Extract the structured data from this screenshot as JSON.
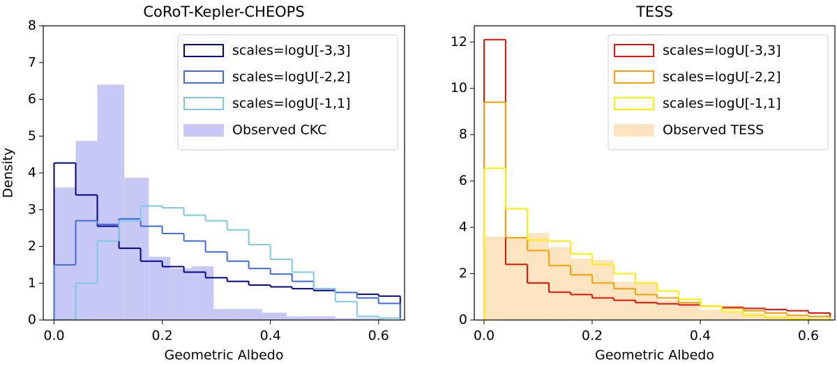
{
  "chart_data": [
    {
      "type": "histogram",
      "title": "CoRoT-Kepler-CHEOPS",
      "xlabel": "Geometric Albedo",
      "ylabel": "Density",
      "xlim": [
        -0.02,
        0.648
      ],
      "ylim": [
        0,
        8
      ],
      "xticks": [
        {
          "value": 0,
          "label": "0.0"
        },
        0.2,
        0.4,
        0.6
      ],
      "yticks": [
        0,
        1,
        2,
        3,
        4,
        5,
        6,
        7,
        8
      ],
      "legend": "upper right",
      "series": [
        {
          "name": "scales=logU[-3,3]",
          "color": "#00008b",
          "style": "step",
          "bins": [
            0,
            0.04,
            0.08,
            0.12,
            0.16,
            0.2,
            0.24,
            0.28,
            0.32,
            0.36,
            0.4,
            0.44,
            0.48,
            0.52,
            0.56,
            0.6,
            0.64
          ],
          "values": [
            4.27,
            3.4,
            2.55,
            1.95,
            1.6,
            1.45,
            1.3,
            1.15,
            1.05,
            0.95,
            0.9,
            0.85,
            0.8,
            0.75,
            0.7,
            0.65
          ]
        },
        {
          "name": "scales=logU[-2,2]",
          "color": "#4169e1",
          "style": "step",
          "bins": [
            0,
            0.04,
            0.08,
            0.12,
            0.16,
            0.2,
            0.24,
            0.28,
            0.32,
            0.36,
            0.4,
            0.44,
            0.48,
            0.52,
            0.56,
            0.6,
            0.64
          ],
          "values": [
            1.5,
            2.7,
            2.6,
            2.75,
            2.55,
            2.35,
            2.15,
            1.85,
            1.6,
            1.4,
            1.25,
            1.05,
            0.85,
            0.75,
            0.6,
            0.45
          ]
        },
        {
          "name": "scales=logU[-1,1]",
          "color": "#7ec8e3",
          "style": "step",
          "bins": [
            0,
            0.04,
            0.08,
            0.12,
            0.16,
            0.2,
            0.24,
            0.28,
            0.32,
            0.36,
            0.4,
            0.44,
            0.48,
            0.52,
            0.56,
            0.6,
            0.64
          ],
          "values": [
            0,
            1.0,
            2.15,
            2.7,
            3.1,
            3.05,
            2.85,
            2.7,
            2.45,
            2.05,
            1.65,
            1.3,
            0.85,
            0.5,
            0.1,
            0.05
          ]
        },
        {
          "name": "Observed CKC",
          "color": "#c8c8f5",
          "style": "filled",
          "bins": [
            0,
            0.04,
            0.08,
            0.13,
            0.175,
            0.215,
            0.255,
            0.295,
            0.34,
            0.385,
            0.43,
            0.475,
            0.52,
            0.565,
            0.61
          ],
          "values": [
            3.6,
            4.87,
            6.4,
            3.87,
            1.72,
            1.4,
            1.46,
            0.3,
            0.3,
            0.2,
            0.1,
            0.1,
            0.05,
            0.05
          ]
        }
      ]
    },
    {
      "type": "histogram",
      "title": "TESS",
      "xlabel": "Geometric Albedo",
      "xlim": [
        -0.018,
        0.649
      ],
      "ylim": [
        0,
        12.7
      ],
      "xticks": [
        {
          "value": 0,
          "label": "0.0"
        },
        0.2,
        0.4,
        0.6
      ],
      "yticks": [
        0,
        2,
        4,
        6,
        8,
        10,
        12
      ],
      "legend": "upper right",
      "series": [
        {
          "name": "scales=logU[-3,3]",
          "color": "#e8100a",
          "style": "step",
          "bins": [
            0,
            0.04,
            0.08,
            0.12,
            0.16,
            0.2,
            0.24,
            0.28,
            0.32,
            0.36,
            0.4,
            0.44,
            0.48,
            0.52,
            0.56,
            0.6,
            0.64
          ],
          "values": [
            12.1,
            2.4,
            1.6,
            1.2,
            1.1,
            0.95,
            0.85,
            0.75,
            0.7,
            0.65,
            0.6,
            0.55,
            0.5,
            0.45,
            0.4,
            0.3
          ]
        },
        {
          "name": "scales=logU[-2,2]",
          "color": "#ff9f00",
          "style": "step",
          "bins": [
            0,
            0.04,
            0.08,
            0.12,
            0.16,
            0.2,
            0.24,
            0.28,
            0.32,
            0.36,
            0.4,
            0.44,
            0.48,
            0.52,
            0.56,
            0.6,
            0.64
          ],
          "values": [
            9.4,
            3.55,
            3.0,
            2.35,
            1.95,
            1.6,
            1.35,
            1.1,
            0.95,
            0.75,
            0.6,
            0.5,
            0.4,
            0.3,
            0.2,
            0.15
          ]
        },
        {
          "name": "scales=logU[-1,1]",
          "color": "#ffee00",
          "style": "step",
          "bins": [
            0,
            0.04,
            0.08,
            0.12,
            0.16,
            0.2,
            0.24,
            0.28,
            0.32,
            0.36,
            0.4,
            0.44,
            0.48,
            0.52,
            0.56,
            0.6,
            0.64
          ],
          "values": [
            6.55,
            4.8,
            3.45,
            3.4,
            2.85,
            2.4,
            2.0,
            1.6,
            1.25,
            0.9,
            0.6,
            0.35,
            0.2,
            0.1,
            0.05,
            0.02
          ]
        },
        {
          "name": "Observed TESS",
          "color": "#fde4c0",
          "style": "filled",
          "bins": [
            0,
            0.04,
            0.08,
            0.12,
            0.16,
            0.2,
            0.24,
            0.28,
            0.32,
            0.36,
            0.4,
            0.44,
            0.48,
            0.52,
            0.56,
            0.6,
            0.64
          ],
          "values": [
            3.6,
            3.55,
            3.75,
            3.15,
            2.65,
            2.6,
            1.65,
            1.65,
            0.85,
            0.75,
            0.45,
            0.35,
            0.3,
            0.2,
            0.15,
            0.1
          ]
        }
      ]
    }
  ]
}
